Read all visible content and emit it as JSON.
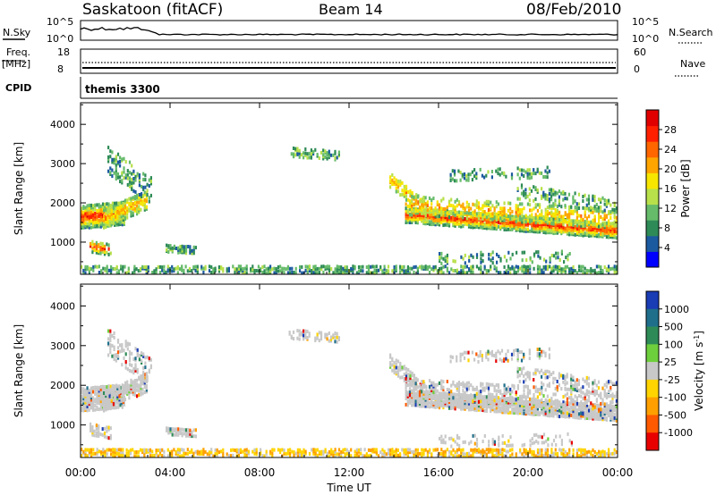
{
  "header": {
    "station": "Saskatoon (fitACF)",
    "beam": "Beam 14",
    "date": "08/Feb/2010"
  },
  "nsky_panel": {
    "left_label": "N.Sky",
    "right_label": "N.Search",
    "left_ticks": [
      "10^5",
      "10^0"
    ],
    "right_ticks": [
      "10^5",
      "10^0"
    ]
  },
  "freq_panel": {
    "left_label_1": "Freq.",
    "left_label_2": "[MHz]",
    "right_label": "Nave",
    "left_ticks": [
      "18",
      "8"
    ],
    "right_ticks": [
      "60",
      "0"
    ]
  },
  "cpid_panel": {
    "label": "CPID",
    "value": "themis 3300"
  },
  "colors": {
    "power_scale": [
      "#0000ff",
      "#1c5aa0",
      "#2e8b57",
      "#66bb6a",
      "#b8e04a",
      "#f7e600",
      "#ffa500",
      "#ff6600",
      "#ff2000",
      "#e00000"
    ],
    "velocity_scale": [
      "#1a3cb4",
      "#1f6f8b",
      "#2e8b57",
      "#6ecf3c",
      "#c8c8c8",
      "#ffd400",
      "#ffa000",
      "#ff5a00",
      "#e80000"
    ]
  },
  "chart_data": [
    {
      "type": "heatmap",
      "name": "power",
      "xlabel": "",
      "ylabel": "Slant Range [km]",
      "x_ticks": [
        "00:00",
        "04:00",
        "08:00",
        "12:00",
        "16:00",
        "20:00",
        "00:00"
      ],
      "xlim_hours": [
        0,
        24
      ],
      "y_ticks": [
        1000,
        2000,
        3000,
        4000
      ],
      "ylim_km": [
        180,
        4550
      ],
      "colorbar": {
        "label": "Power [dB]",
        "ticks": [
          4,
          8,
          12,
          16,
          20,
          24,
          28
        ],
        "range": [
          0,
          32
        ]
      }
    },
    {
      "type": "heatmap",
      "name": "velocity",
      "xlabel": "Time UT",
      "ylabel": "Slant Range [km]",
      "x_ticks": [
        "00:00",
        "04:00",
        "08:00",
        "12:00",
        "16:00",
        "20:00",
        "00:00"
      ],
      "xlim_hours": [
        0,
        24
      ],
      "y_ticks": [
        1000,
        2000,
        3000,
        4000
      ],
      "ylim_km": [
        180,
        4550
      ],
      "colorbar": {
        "label": "Velocity [m s^-1]",
        "ticks": [
          "1000",
          "500",
          "100",
          "25",
          "-25",
          "-100",
          "-500",
          "-1000"
        ]
      }
    }
  ]
}
